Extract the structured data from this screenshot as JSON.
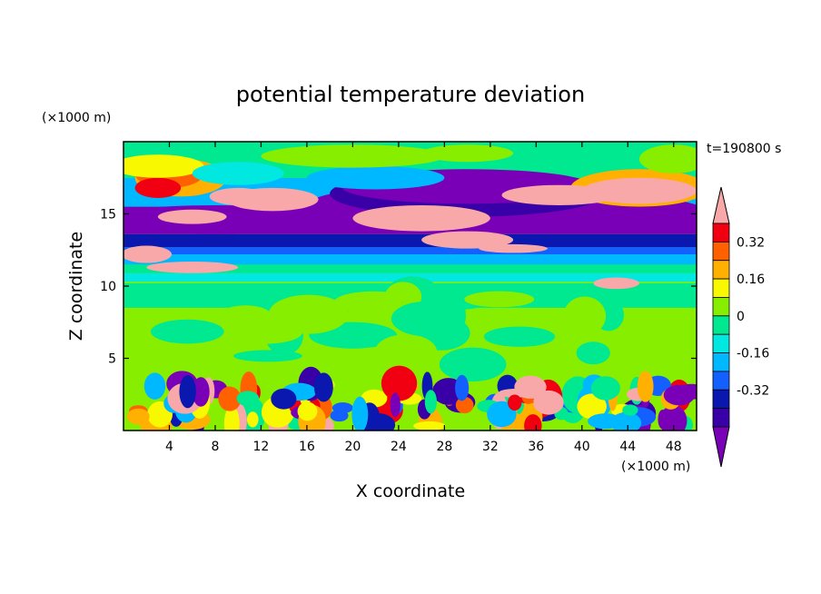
{
  "chart_data": {
    "type": "heatmap",
    "title": "potential temperature deviation",
    "xlabel": "X coordinate",
    "ylabel": "Z coordinate",
    "x_unit": "(×1000 m)",
    "y_unit": "(×1000 m)",
    "time_label": "t=190800 s",
    "xlim": [
      0,
      50
    ],
    "ylim": [
      0,
      20
    ],
    "x_ticks": [
      4,
      8,
      12,
      16,
      20,
      24,
      28,
      32,
      36,
      40,
      44,
      48
    ],
    "y_ticks": [
      5,
      10,
      15
    ],
    "colorbar": {
      "levels": [
        -0.48,
        -0.4,
        -0.32,
        -0.24,
        -0.16,
        -0.08,
        0,
        0.08,
        0.16,
        0.24,
        0.32,
        0.4
      ],
      "colors": [
        "#7a00b8",
        "#3a00a8",
        "#0a18b0",
        "#1460ff",
        "#00b8ff",
        "#00e8e0",
        "#00e890",
        "#88ee00",
        "#f8f800",
        "#ffb000",
        "#ff6000",
        "#f00010",
        "#f8a8a8"
      ],
      "tick_labels": [
        "0.32",
        "0.16",
        "0",
        "-0.16",
        "-0.32"
      ],
      "tick_values": [
        0.32,
        0.16,
        0,
        -0.16,
        -0.32
      ]
    },
    "grid": false
  }
}
